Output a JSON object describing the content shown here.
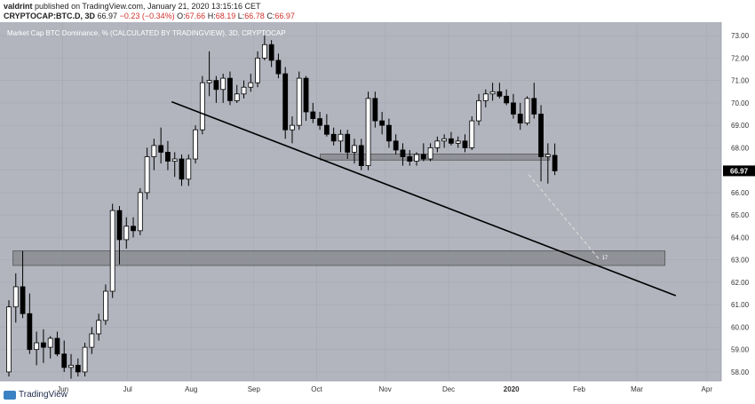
{
  "header": {
    "author": "valdrint",
    "published_text": "published on TradingView.com, January 21, 2020 13:15:16 CET",
    "symbol": "CRYPTOCAP:BTC.D, 3D",
    "last": "66.97",
    "change": "−0.23 (−0.34%)",
    "ohlc": {
      "O": "67.66",
      "H": "68.19",
      "L": "66.78",
      "C": "66.97"
    }
  },
  "chart_title": "Market Cap BTC Dominance, % (CALCULATED BY TRADINGVIEW), 3D, CRYPTOCAP",
  "branding": {
    "name": "TradingView"
  },
  "colors": {
    "background": "#b2b5be",
    "up": "#ffffff",
    "down": "#000000",
    "grid": "#a5a8b2",
    "zone": "#7f8186",
    "zone_fill": "#8a8c92",
    "price_tag": "#000000",
    "projection": "#e0e0e0"
  },
  "chart_data": {
    "type": "candlestick",
    "timeframe": "3D",
    "ylim": [
      57.6,
      73.6
    ],
    "y_ticks": [
      "58.00",
      "59.00",
      "60.00",
      "61.00",
      "62.00",
      "63.00",
      "64.00",
      "65.00",
      "66.00",
      "67.00",
      "68.00",
      "69.00",
      "70.00",
      "71.00",
      "72.00",
      "73.00"
    ],
    "x_ticks": [
      "Jun",
      "Jul",
      "Aug",
      "Sep",
      "Oct",
      "Nov",
      "Dec",
      "2020",
      "Feb",
      "Mar",
      "Apr"
    ],
    "current_price": "66.97",
    "candles": [
      {
        "o": 58.0,
        "h": 61.2,
        "l": 57.8,
        "c": 60.9
      },
      {
        "o": 60.9,
        "h": 62.4,
        "l": 60.2,
        "c": 61.8
      },
      {
        "o": 61.8,
        "h": 63.4,
        "l": 60.4,
        "c": 60.6
      },
      {
        "o": 60.6,
        "h": 61.5,
        "l": 58.8,
        "c": 59.0
      },
      {
        "o": 59.0,
        "h": 59.8,
        "l": 58.3,
        "c": 59.3
      },
      {
        "o": 59.3,
        "h": 59.9,
        "l": 58.4,
        "c": 59.1
      },
      {
        "o": 59.1,
        "h": 59.6,
        "l": 58.6,
        "c": 59.5
      },
      {
        "o": 59.5,
        "h": 59.8,
        "l": 58.7,
        "c": 58.8
      },
      {
        "o": 58.8,
        "h": 59.4,
        "l": 58.0,
        "c": 58.2
      },
      {
        "o": 58.2,
        "h": 58.8,
        "l": 57.7,
        "c": 58.3
      },
      {
        "o": 58.3,
        "h": 58.6,
        "l": 57.8,
        "c": 58.0
      },
      {
        "o": 58.0,
        "h": 59.3,
        "l": 57.8,
        "c": 59.1
      },
      {
        "o": 59.1,
        "h": 60.0,
        "l": 58.8,
        "c": 59.7
      },
      {
        "o": 59.7,
        "h": 60.6,
        "l": 59.4,
        "c": 60.3
      },
      {
        "o": 60.3,
        "h": 61.9,
        "l": 60.1,
        "c": 61.6
      },
      {
        "o": 61.6,
        "h": 65.5,
        "l": 61.3,
        "c": 65.2
      },
      {
        "o": 65.2,
        "h": 65.4,
        "l": 62.8,
        "c": 63.9
      },
      {
        "o": 63.9,
        "h": 64.9,
        "l": 63.5,
        "c": 64.5
      },
      {
        "o": 64.5,
        "h": 64.9,
        "l": 64.0,
        "c": 64.3
      },
      {
        "o": 64.3,
        "h": 66.2,
        "l": 64.1,
        "c": 66.0
      },
      {
        "o": 66.0,
        "h": 68.0,
        "l": 65.7,
        "c": 67.6
      },
      {
        "o": 67.6,
        "h": 68.4,
        "l": 67.0,
        "c": 68.1
      },
      {
        "o": 68.1,
        "h": 68.9,
        "l": 67.3,
        "c": 67.8
      },
      {
        "o": 67.8,
        "h": 68.3,
        "l": 67.0,
        "c": 67.4
      },
      {
        "o": 67.4,
        "h": 67.8,
        "l": 66.7,
        "c": 67.5
      },
      {
        "o": 67.5,
        "h": 67.7,
        "l": 66.3,
        "c": 66.6
      },
      {
        "o": 66.6,
        "h": 67.7,
        "l": 66.3,
        "c": 67.5
      },
      {
        "o": 67.5,
        "h": 69.0,
        "l": 67.3,
        "c": 68.8
      },
      {
        "o": 68.8,
        "h": 71.2,
        "l": 68.6,
        "c": 70.9
      },
      {
        "o": 70.9,
        "h": 72.3,
        "l": 70.3,
        "c": 71.0
      },
      {
        "o": 71.0,
        "h": 71.2,
        "l": 70.0,
        "c": 70.6
      },
      {
        "o": 70.6,
        "h": 71.3,
        "l": 70.0,
        "c": 71.1
      },
      {
        "o": 71.1,
        "h": 71.4,
        "l": 69.9,
        "c": 70.1
      },
      {
        "o": 70.1,
        "h": 70.8,
        "l": 70.0,
        "c": 70.4
      },
      {
        "o": 70.4,
        "h": 71.0,
        "l": 70.2,
        "c": 70.7
      },
      {
        "o": 70.7,
        "h": 71.3,
        "l": 70.5,
        "c": 70.9
      },
      {
        "o": 70.9,
        "h": 72.3,
        "l": 70.7,
        "c": 72.0
      },
      {
        "o": 72.0,
        "h": 73.0,
        "l": 71.9,
        "c": 72.6
      },
      {
        "o": 72.6,
        "h": 72.8,
        "l": 71.6,
        "c": 71.9
      },
      {
        "o": 71.9,
        "h": 72.2,
        "l": 71.1,
        "c": 71.3
      },
      {
        "o": 71.3,
        "h": 71.6,
        "l": 68.4,
        "c": 68.8
      },
      {
        "o": 68.8,
        "h": 69.4,
        "l": 68.2,
        "c": 69.0
      },
      {
        "o": 69.0,
        "h": 71.4,
        "l": 68.8,
        "c": 71.1
      },
      {
        "o": 71.1,
        "h": 71.2,
        "l": 69.2,
        "c": 69.6
      },
      {
        "o": 69.6,
        "h": 70.0,
        "l": 69.1,
        "c": 69.3
      },
      {
        "o": 69.3,
        "h": 69.6,
        "l": 68.8,
        "c": 69.0
      },
      {
        "o": 69.0,
        "h": 69.5,
        "l": 68.5,
        "c": 68.6
      },
      {
        "o": 68.6,
        "h": 68.9,
        "l": 68.1,
        "c": 68.3
      },
      {
        "o": 68.3,
        "h": 68.8,
        "l": 67.8,
        "c": 68.6
      },
      {
        "o": 68.6,
        "h": 68.8,
        "l": 67.5,
        "c": 67.8
      },
      {
        "o": 67.8,
        "h": 68.4,
        "l": 67.3,
        "c": 68.1
      },
      {
        "o": 68.1,
        "h": 68.4,
        "l": 67.0,
        "c": 67.2
      },
      {
        "o": 67.2,
        "h": 70.5,
        "l": 67.0,
        "c": 70.2
      },
      {
        "o": 70.2,
        "h": 70.5,
        "l": 68.9,
        "c": 69.2
      },
      {
        "o": 69.2,
        "h": 69.6,
        "l": 68.6,
        "c": 69.0
      },
      {
        "o": 69.0,
        "h": 69.3,
        "l": 68.0,
        "c": 68.3
      },
      {
        "o": 68.3,
        "h": 68.6,
        "l": 67.7,
        "c": 67.9
      },
      {
        "o": 67.9,
        "h": 68.2,
        "l": 67.2,
        "c": 67.6
      },
      {
        "o": 67.6,
        "h": 67.9,
        "l": 67.2,
        "c": 67.4
      },
      {
        "o": 67.4,
        "h": 67.8,
        "l": 67.2,
        "c": 67.7
      },
      {
        "o": 67.7,
        "h": 68.2,
        "l": 67.4,
        "c": 67.5
      },
      {
        "o": 67.5,
        "h": 68.2,
        "l": 67.4,
        "c": 68.0
      },
      {
        "o": 68.0,
        "h": 68.5,
        "l": 67.8,
        "c": 68.3
      },
      {
        "o": 68.3,
        "h": 68.6,
        "l": 68.0,
        "c": 68.4
      },
      {
        "o": 68.4,
        "h": 68.7,
        "l": 68.1,
        "c": 68.2
      },
      {
        "o": 68.2,
        "h": 68.5,
        "l": 68.0,
        "c": 68.3
      },
      {
        "o": 68.3,
        "h": 68.6,
        "l": 67.8,
        "c": 68.0
      },
      {
        "o": 68.0,
        "h": 69.4,
        "l": 67.9,
        "c": 69.2
      },
      {
        "o": 69.2,
        "h": 70.4,
        "l": 69.0,
        "c": 70.1
      },
      {
        "o": 70.1,
        "h": 70.6,
        "l": 69.8,
        "c": 70.4
      },
      {
        "o": 70.4,
        "h": 70.9,
        "l": 70.1,
        "c": 70.5
      },
      {
        "o": 70.5,
        "h": 70.9,
        "l": 70.2,
        "c": 70.3
      },
      {
        "o": 70.3,
        "h": 70.6,
        "l": 69.9,
        "c": 70.0
      },
      {
        "o": 70.0,
        "h": 70.4,
        "l": 69.3,
        "c": 69.5
      },
      {
        "o": 69.5,
        "h": 70.0,
        "l": 68.8,
        "c": 69.1
      },
      {
        "o": 69.1,
        "h": 70.3,
        "l": 69.0,
        "c": 70.2
      },
      {
        "o": 70.2,
        "h": 70.9,
        "l": 69.3,
        "c": 69.5
      },
      {
        "o": 69.5,
        "h": 69.9,
        "l": 66.5,
        "c": 67.6
      },
      {
        "o": 67.6,
        "h": 68.2,
        "l": 66.4,
        "c": 67.7
      },
      {
        "o": 67.66,
        "h": 68.19,
        "l": 66.78,
        "c": 66.97
      }
    ],
    "trendline": {
      "from": [
        0.238,
        70.05
      ],
      "to": [
        0.937,
        61.4
      ]
    },
    "zones": [
      {
        "x0": 0.444,
        "x1": 0.762,
        "y0": 67.45,
        "y1": 67.72
      },
      {
        "x0": 0.018,
        "x1": 0.922,
        "y0": 62.75,
        "y1": 63.4
      }
    ],
    "projection": {
      "from": [
        0.733,
        66.8
      ],
      "to": [
        0.832,
        62.98
      ],
      "label": "17"
    }
  }
}
